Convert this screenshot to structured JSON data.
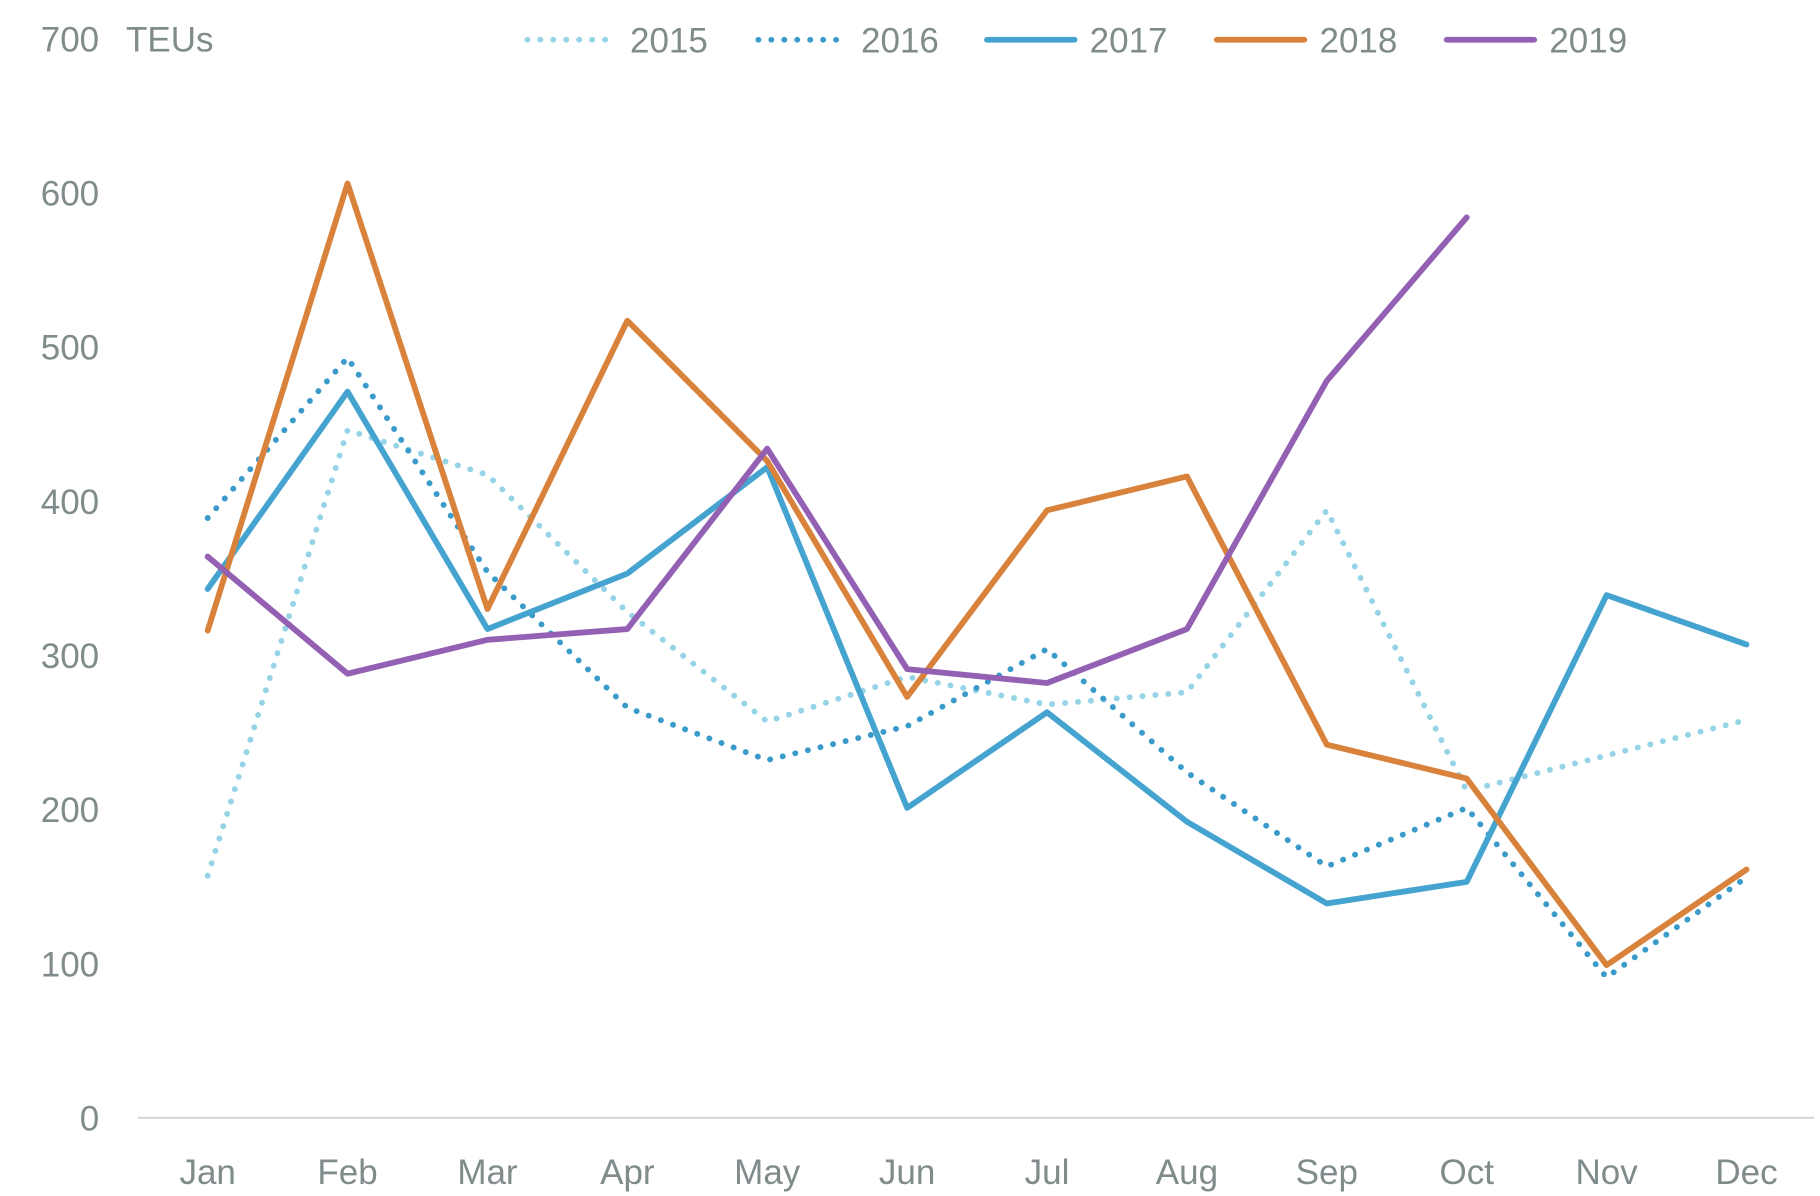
{
  "chart_data": {
    "type": "line",
    "title": "",
    "ylabel": "TEUs",
    "xlabel": "",
    "ylim": [
      0,
      700
    ],
    "yticks": [
      0,
      100,
      200,
      300,
      400,
      500,
      600,
      700
    ],
    "categories": [
      "Jan",
      "Feb",
      "Mar",
      "Apr",
      "May",
      "Jun",
      "Jul",
      "Aug",
      "Sep",
      "Oct",
      "Nov",
      "Dec"
    ],
    "legend_position": "top",
    "grid": false,
    "series": [
      {
        "name": "2015",
        "style": "dotted",
        "color": "#95d3e6",
        "values": [
          157,
          446,
          417,
          328,
          257,
          286,
          268,
          276,
          394,
          212,
          235,
          258
        ]
      },
      {
        "name": "2016",
        "style": "dotted",
        "color": "#3a9bcb",
        "values": [
          389,
          493,
          354,
          266,
          232,
          254,
          304,
          224,
          163,
          201,
          91,
          156
        ]
      },
      {
        "name": "2017",
        "style": "solid",
        "color": "#45a3d0",
        "values": [
          343,
          471,
          317,
          353,
          422,
          201,
          263,
          192,
          139,
          153,
          339,
          307
        ]
      },
      {
        "name": "2018",
        "style": "solid",
        "color": "#d9823b",
        "values": [
          316,
          606,
          330,
          517,
          426,
          273,
          394,
          416,
          242,
          220,
          99,
          161
        ]
      },
      {
        "name": "2019",
        "style": "solid",
        "color": "#9360b3",
        "values": [
          364,
          288,
          310,
          317,
          434,
          291,
          282,
          317,
          478,
          584,
          null,
          null
        ]
      }
    ]
  }
}
